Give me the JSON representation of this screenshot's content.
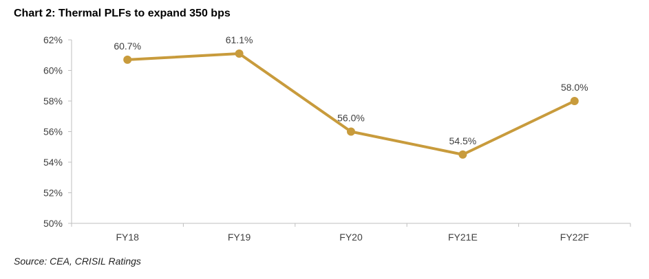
{
  "title": "Chart 2: Thermal PLFs to expand 350 bps",
  "source": "Source: CEA, CRISIL Ratings",
  "colors": {
    "series": "#C89B3C",
    "axis": "#BFBFBF",
    "text": "#404040"
  },
  "chart_data": {
    "type": "line",
    "title": "Chart 2: Thermal PLFs to expand 350 bps",
    "xlabel": "",
    "ylabel": "",
    "categories": [
      "FY18",
      "FY19",
      "FY20",
      "FY21E",
      "FY22F"
    ],
    "values": [
      60.7,
      61.1,
      56.0,
      54.5,
      58.0
    ],
    "data_labels": [
      "60.7%",
      "61.1%",
      "56.0%",
      "54.5%",
      "58.0%"
    ],
    "ylim": [
      50,
      62
    ],
    "yticks": [
      50,
      52,
      54,
      56,
      58,
      60,
      62
    ],
    "ytick_labels": [
      "50%",
      "52%",
      "54%",
      "56%",
      "58%",
      "60%",
      "62%"
    ],
    "grid": false,
    "legend": "none"
  }
}
